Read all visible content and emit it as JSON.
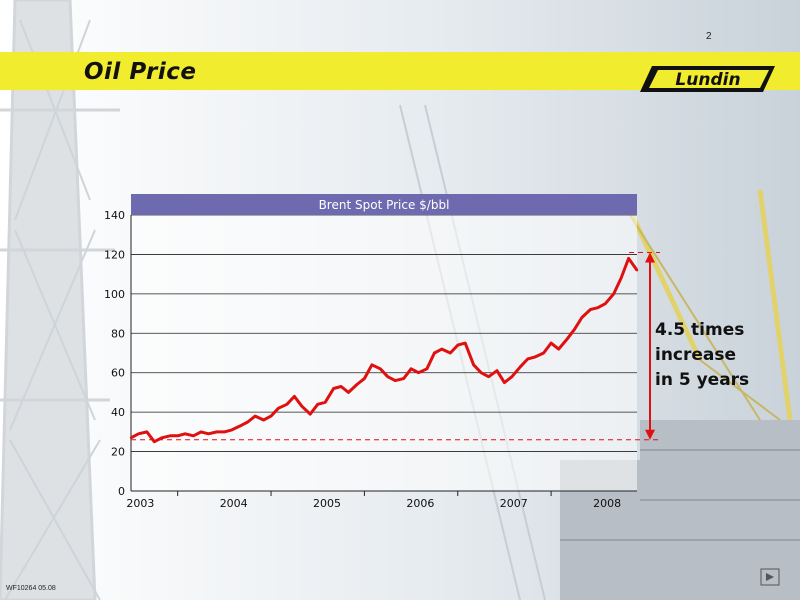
{
  "page": {
    "number": "2",
    "title": "Oil Price",
    "footer_code": "WF10264 05.08"
  },
  "colors": {
    "band_yellow": "#f2ec2e",
    "chart_header": "#6e6ab0",
    "series_red": "#e01010",
    "annotation_red": "#e01010"
  },
  "logo": {
    "text": "Lundin"
  },
  "annotation": {
    "text_line1": "4.5 times increase",
    "text_line2": "in 5 years"
  },
  "chart_data": {
    "type": "line",
    "title": "Brent Spot Price $/bbl",
    "xlabel": "",
    "ylabel": "",
    "ylim": [
      0,
      140
    ],
    "y_ticks": [
      0,
      20,
      40,
      60,
      80,
      100,
      120,
      140
    ],
    "x_tick_labels": [
      "2003",
      "2004",
      "2005",
      "2006",
      "2007",
      "2008"
    ],
    "xlim": [
      2003.0,
      2008.42
    ],
    "grid": true,
    "legend": "none",
    "series": [
      {
        "x": [
          2003.0,
          2003.08,
          2003.17,
          2003.25,
          2003.33,
          2003.42,
          2003.5,
          2003.58,
          2003.67,
          2003.75,
          2003.83,
          2003.92,
          2004.0,
          2004.08,
          2004.17,
          2004.25,
          2004.33,
          2004.42,
          2004.5,
          2004.58,
          2004.67,
          2004.75,
          2004.83,
          2004.92,
          2005.0,
          2005.08,
          2005.17,
          2005.25,
          2005.33,
          2005.42,
          2005.5,
          2005.58,
          2005.67,
          2005.75,
          2005.83,
          2005.92,
          2006.0,
          2006.08,
          2006.17,
          2006.25,
          2006.33,
          2006.42,
          2006.5,
          2006.58,
          2006.67,
          2006.75,
          2006.83,
          2006.92,
          2007.0,
          2007.08,
          2007.17,
          2007.25,
          2007.33,
          2007.42,
          2007.5,
          2007.58,
          2007.67,
          2007.75,
          2007.83,
          2007.92,
          2008.0,
          2008.08,
          2008.17,
          2008.25,
          2008.33,
          2008.42
        ],
        "y": [
          27,
          29,
          30,
          25,
          27,
          28,
          28,
          29,
          28,
          30,
          29,
          30,
          30,
          31,
          33,
          35,
          38,
          36,
          38,
          42,
          44,
          48,
          43,
          39,
          44,
          45,
          52,
          53,
          50,
          54,
          57,
          64,
          62,
          58,
          56,
          57,
          62,
          60,
          62,
          70,
          72,
          70,
          74,
          75,
          64,
          60,
          58,
          61,
          55,
          58,
          63,
          67,
          68,
          70,
          75,
          72,
          77,
          82,
          88,
          92,
          93,
          95,
          100,
          108,
          118,
          112
        ]
      }
    ],
    "baseline": {
      "value": 26,
      "style": "dashed"
    },
    "peak": {
      "value": 121,
      "style": "dashed"
    }
  }
}
